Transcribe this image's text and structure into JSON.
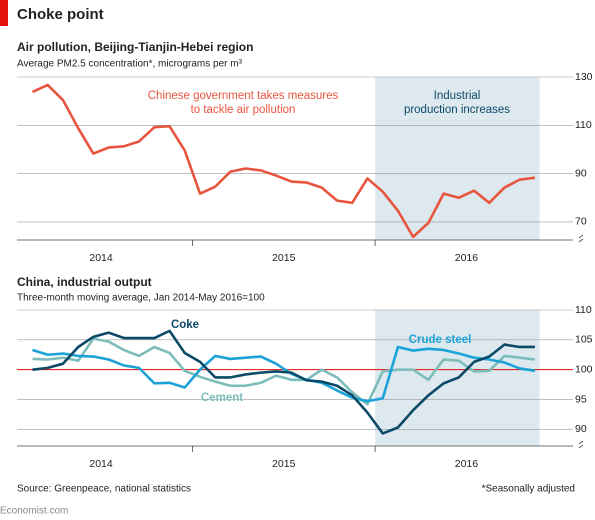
{
  "title": "Choke point",
  "source": "Source: Greenpeace, national statistics",
  "footnote": "*Seasonally adjusted",
  "brand": "Economist.com",
  "chart_data": [
    {
      "type": "line",
      "title": "Air pollution, Beijing-Tianjin-Hebei region",
      "subtitle": "Average PM2.5 concentration*, micrograms per m³",
      "annotations": [
        [
          "Chinese government takes measures",
          "to tackle air pollution"
        ],
        [
          "Industrial",
          "production increases"
        ]
      ],
      "shade": [
        2016,
        2016.9
      ],
      "x": [
        2014.125,
        2014.208,
        2014.292,
        2014.375,
        2014.458,
        2014.542,
        2014.625,
        2014.708,
        2014.792,
        2014.875,
        2014.958,
        2015.042,
        2015.125,
        2015.208,
        2015.292,
        2015.375,
        2015.458,
        2015.542,
        2015.625,
        2015.708,
        2015.792,
        2015.875,
        2015.958,
        2016.042,
        2016.125,
        2016.208,
        2016.292,
        2016.375,
        2016.458,
        2016.542,
        2016.625,
        2016.708,
        2016.792,
        2016.875
      ],
      "series": [
        {
          "name": "PM2.5",
          "color": "#e8553f",
          "values": [
            123.8,
            126.7,
            120.4,
            108.8,
            98.3,
            100.8,
            101.3,
            103.3,
            109.2,
            109.6,
            99.6,
            81.7,
            84.6,
            90.8,
            92.1,
            91.3,
            89.2,
            86.7,
            86.3,
            84.2,
            78.8,
            77.9,
            88,
            82.5,
            74.6,
            63.8,
            69.6,
            81.7,
            80,
            82.9,
            77.9,
            84.2,
            87.5,
            88.3
          ]
        }
      ],
      "xlim": [
        2014.04,
        2016.93
      ],
      "xticks": [
        {
          "value": 2014.5,
          "label": "2014"
        },
        {
          "value": 2015.5,
          "label": "2015"
        },
        {
          "value": 2016.5,
          "label": "2016"
        }
      ],
      "ylim": [
        62.5,
        130
      ],
      "yticks": [
        70,
        90,
        110,
        130
      ],
      "grid": true
    },
    {
      "type": "line",
      "title": "China, industrial output",
      "subtitle": "Three-month moving average, Jan 2014-May 2016=100",
      "shade": [
        2016,
        2016.9
      ],
      "baseline": 100,
      "x": [
        2014.125,
        2014.208,
        2014.292,
        2014.375,
        2014.458,
        2014.542,
        2014.625,
        2014.708,
        2014.792,
        2014.875,
        2014.958,
        2015.042,
        2015.125,
        2015.208,
        2015.292,
        2015.375,
        2015.458,
        2015.542,
        2015.625,
        2015.708,
        2015.792,
        2015.875,
        2015.958,
        2016.042,
        2016.125,
        2016.208,
        2016.292,
        2016.375,
        2016.458,
        2016.542,
        2016.625,
        2016.708,
        2016.792,
        2016.875
      ],
      "series": [
        {
          "name": "Cement",
          "color": "#7cbdbb",
          "values": [
            101.8,
            101.7,
            102,
            101.5,
            105.2,
            104.7,
            103.3,
            102.3,
            103.8,
            102.8,
            99.8,
            98.8,
            98,
            97.3,
            97.3,
            97.8,
            99,
            98.3,
            98.3,
            100,
            98.7,
            96.2,
            94.2,
            99.7,
            100,
            100,
            98.3,
            101.7,
            101.5,
            99.7,
            99.8,
            102.3,
            102,
            101.7
          ]
        },
        {
          "name": "Crude steel",
          "color": "#1ba3d8",
          "values": [
            103.3,
            102.5,
            102.7,
            102.3,
            102.2,
            101.7,
            100.7,
            100.3,
            97.7,
            97.8,
            97,
            100,
            102.3,
            101.8,
            102,
            102.2,
            101,
            99.3,
            98.3,
            97.8,
            96.5,
            95.3,
            94.7,
            95.2,
            103.8,
            103.2,
            103.5,
            103.3,
            102.7,
            102,
            101.7,
            101.2,
            100.2,
            99.8
          ]
        },
        {
          "name": "Coke",
          "color": "#0c4a68",
          "values": [
            100,
            100.3,
            101,
            103.8,
            105.5,
            106.2,
            105.3,
            105.3,
            105.3,
            106.5,
            102.8,
            101.3,
            98.7,
            98.7,
            99.2,
            99.5,
            99.7,
            99.5,
            98.2,
            98,
            97.3,
            95.7,
            92.8,
            89.3,
            90.3,
            93.2,
            95.7,
            97.7,
            98.7,
            101.3,
            102.2,
            104.2,
            103.8,
            103.8
          ]
        }
      ],
      "xlim": [
        2014.04,
        2016.93
      ],
      "xticks": [
        {
          "value": 2014.5,
          "label": "2014"
        },
        {
          "value": 2015.5,
          "label": "2015"
        },
        {
          "value": 2016.5,
          "label": "2016"
        }
      ],
      "ylim": [
        87.2,
        110
      ],
      "yticks": [
        90,
        95,
        100,
        105,
        110
      ],
      "grid": true
    }
  ]
}
